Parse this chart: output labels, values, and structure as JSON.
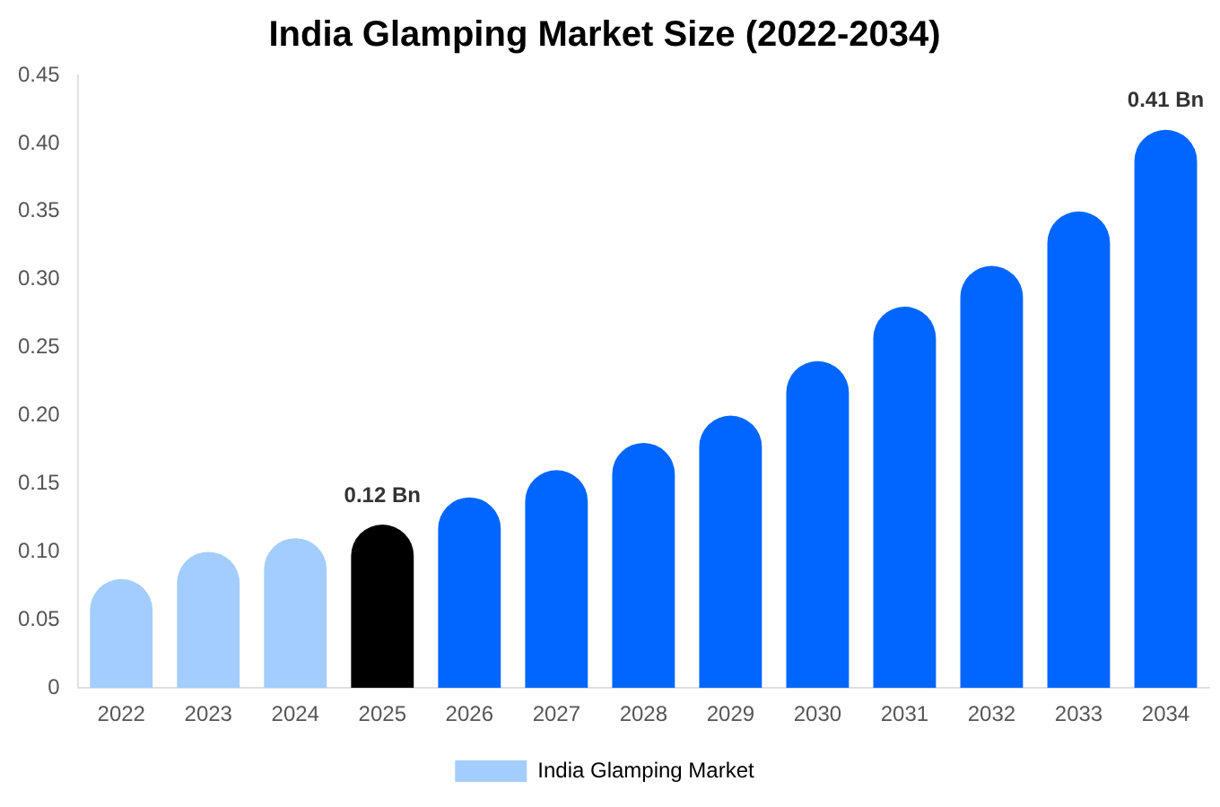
{
  "chart_data": {
    "type": "bar",
    "title": "India Glamping Market Size (2022-2034)",
    "categories": [
      "2022",
      "2023",
      "2024",
      "2025",
      "2026",
      "2027",
      "2028",
      "2029",
      "2030",
      "2031",
      "2032",
      "2033",
      "2034"
    ],
    "series": [
      {
        "name": "India Glamping Market",
        "color": "#a3cdfd",
        "values": [
          0.08,
          0.1,
          0.11,
          0.12,
          0.14,
          0.16,
          0.18,
          0.2,
          0.24,
          0.28,
          0.31,
          0.35,
          0.41
        ],
        "colors": [
          "#a3cdfd",
          "#a3cdfd",
          "#a3cdfd",
          "#000000",
          "#0066ff",
          "#0066ff",
          "#0066ff",
          "#0066ff",
          "#0066ff",
          "#0066ff",
          "#0066ff",
          "#0066ff",
          "#0066ff"
        ],
        "value_labels": [
          null,
          null,
          null,
          "0.12 Bn",
          null,
          null,
          null,
          null,
          null,
          null,
          null,
          null,
          "0.41 Bn"
        ]
      }
    ],
    "ylim": [
      0,
      0.45
    ],
    "yticks": [
      {
        "value": 0,
        "label": "0"
      },
      {
        "value": 0.05,
        "label": "0.05"
      },
      {
        "value": 0.1,
        "label": "0.10"
      },
      {
        "value": 0.15,
        "label": "0.15"
      },
      {
        "value": 0.2,
        "label": "0.20"
      },
      {
        "value": 0.25,
        "label": "0.25"
      },
      {
        "value": 0.3,
        "label": "0.30"
      },
      {
        "value": 0.35,
        "label": "0.35"
      },
      {
        "value": 0.4,
        "label": "0.40"
      },
      {
        "value": 0.45,
        "label": "0.45"
      }
    ],
    "legend": "bottom",
    "grid": false
  }
}
